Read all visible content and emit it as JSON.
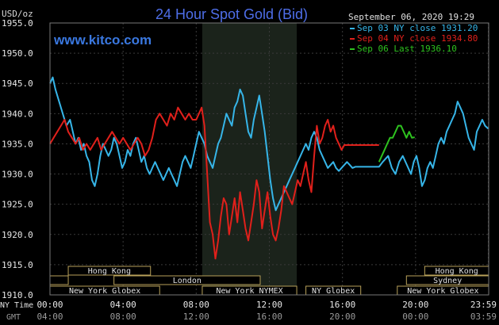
{
  "chart_data": {
    "type": "line",
    "title": "24 Hour Spot Gold (Bid)",
    "watermark": "www.kitco.com",
    "date": "September 06, 2020 19:29",
    "ylabel": "USD/oz",
    "ylim": [
      1910,
      1955
    ],
    "y_ticks": [
      "1955.0",
      "1950.0",
      "1945.0",
      "1940.0",
      "1935.0",
      "1930.0",
      "1925.0",
      "1920.0",
      "1915.0",
      "1910.0"
    ],
    "x_label_ny": "NY Time",
    "x_label_gmt": "GMT",
    "x_ticks_ny": [
      "00:00",
      "04:00",
      "08:00",
      "12:00",
      "16:00",
      "20:00",
      "23:59"
    ],
    "x_ticks_gmt": [
      "04:00",
      "08:00",
      "12:00",
      "16:00",
      "20:00",
      "00:00",
      "03:59"
    ],
    "x_hours": [
      0,
      4,
      8,
      12,
      16,
      20,
      23.983
    ],
    "nymex_session_hours": [
      8.33,
      13.5
    ],
    "grid": true,
    "legend": [
      {
        "label": "Sep 03 NY close 1931.20",
        "color": "#36b5e8"
      },
      {
        "label": "Sep 04 NY close 1934.80",
        "color": "#e0201b"
      },
      {
        "label": "Sep 06 Last 1936.10",
        "color": "#2ec21f"
      }
    ],
    "sessions": [
      {
        "name": "Hong Kong",
        "start": 1.0,
        "end": 5.5,
        "row": 0
      },
      {
        "name": "Hong Kong",
        "start": 20.5,
        "end": 24.0,
        "row": 0
      },
      {
        "name": "London",
        "start": 3.5,
        "end": 11.5,
        "row": 1
      },
      {
        "name": "",
        "start": 0.0,
        "end": 1.0,
        "row": 1
      },
      {
        "name": "Sydney",
        "start": 19.5,
        "end": 24.0,
        "row": 1
      },
      {
        "name": "New York Globex",
        "start": 0.0,
        "end": 6.0,
        "row": 2
      },
      {
        "name": "New York NYMEX",
        "start": 8.33,
        "end": 13.5,
        "row": 2
      },
      {
        "name": "NY Globex",
        "start": 14.0,
        "end": 17.0,
        "row": 2
      },
      {
        "name": "New York Globex",
        "start": 19.0,
        "end": 24.0,
        "row": 2
      }
    ],
    "series": [
      {
        "name": "Sep 03 NY close 1931.20",
        "color": "#36b5e8",
        "x": [
          0,
          0.15,
          0.3,
          0.5,
          0.7,
          0.9,
          1.1,
          1.25,
          1.4,
          1.55,
          1.7,
          1.85,
          2.0,
          2.15,
          2.3,
          2.45,
          2.6,
          2.75,
          2.9,
          3.05,
          3.2,
          3.35,
          3.5,
          3.65,
          3.8,
          3.95,
          4.1,
          4.25,
          4.4,
          4.55,
          4.7,
          4.85,
          5.0,
          5.15,
          5.3,
          5.45,
          5.6,
          5.75,
          5.9,
          6.05,
          6.2,
          6.35,
          6.5,
          6.65,
          6.8,
          6.95,
          7.1,
          7.25,
          7.4,
          7.55,
          7.7,
          7.85,
          8.0,
          8.15,
          8.3,
          8.45,
          8.6,
          8.75,
          8.9,
          9.05,
          9.2,
          9.35,
          9.5,
          9.65,
          9.8,
          9.95,
          10.1,
          10.25,
          10.4,
          10.55,
          10.7,
          10.85,
          11.0,
          11.15,
          11.3,
          11.45,
          11.6,
          11.75,
          11.9,
          12.05,
          12.2,
          12.35,
          12.5,
          12.65,
          12.8,
          12.95,
          13.1,
          13.25,
          13.4,
          13.55,
          13.7,
          13.85,
          14.0,
          14.15,
          14.3,
          14.45,
          14.6,
          14.75,
          14.9,
          15.05,
          15.2,
          15.35,
          15.5,
          15.65,
          15.8,
          15.95,
          16.1,
          16.25,
          16.4,
          16.55,
          16.7,
          16.85,
          17.0,
          17.5,
          18.0,
          18.2,
          18.5,
          18.7,
          18.9,
          19.1,
          19.3,
          19.45,
          19.6,
          19.75,
          19.9,
          20.05,
          20.2,
          20.35,
          20.5,
          20.65,
          20.8,
          20.95,
          21.1,
          21.25,
          21.4,
          21.55,
          21.7,
          21.85,
          22.0,
          22.15,
          22.3,
          22.45,
          22.6,
          22.75,
          22.9,
          23.05,
          23.2,
          23.35,
          23.5,
          23.65,
          23.8,
          23.98
        ],
        "y": [
          1945,
          1946,
          1944,
          1942,
          1940,
          1938,
          1939,
          1937,
          1935,
          1936,
          1934,
          1935,
          1933,
          1932,
          1929,
          1928,
          1930,
          1933,
          1935,
          1934,
          1933,
          1934,
          1936,
          1935,
          1933,
          1931,
          1932,
          1934,
          1933,
          1935,
          1936,
          1934,
          1932,
          1933,
          1931,
          1930,
          1931,
          1932,
          1931,
          1930,
          1929,
          1930,
          1931,
          1930,
          1929,
          1928,
          1930,
          1932,
          1933,
          1932,
          1931,
          1933,
          1935,
          1937,
          1936,
          1935,
          1933,
          1932,
          1931,
          1933,
          1935,
          1936,
          1938,
          1940,
          1939,
          1938,
          1941,
          1942,
          1944,
          1943,
          1940,
          1937,
          1936,
          1939,
          1941,
          1943,
          1940,
          1937,
          1933,
          1929,
          1926,
          1924,
          1925,
          1926,
          1927,
          1928,
          1929,
          1930,
          1931,
          1932,
          1933,
          1934,
          1935,
          1934,
          1936,
          1937,
          1936,
          1934,
          1933,
          1932,
          1931,
          1931.5,
          1932,
          1931,
          1930.5,
          1931,
          1931.5,
          1932,
          1931.5,
          1931,
          1931.2,
          1931.2,
          1931.2,
          1931.2,
          1931.2,
          1932,
          1933,
          1931,
          1930,
          1932,
          1933,
          1932,
          1931,
          1930,
          1932,
          1933,
          1931,
          1928,
          1929,
          1931,
          1932,
          1931,
          1933,
          1935,
          1936,
          1935,
          1937,
          1938,
          1939,
          1940,
          1942,
          1941,
          1940,
          1938,
          1936,
          1935,
          1934,
          1937,
          1938,
          1939,
          1938,
          1937.5
        ]
      },
      {
        "name": "Sep 04 NY close 1934.80",
        "color": "#e0201b",
        "x": [
          0,
          0.2,
          0.4,
          0.6,
          0.8,
          1.0,
          1.2,
          1.4,
          1.6,
          1.8,
          2.0,
          2.2,
          2.4,
          2.6,
          2.8,
          3.0,
          3.2,
          3.4,
          3.6,
          3.8,
          4.0,
          4.2,
          4.4,
          4.6,
          4.8,
          5.0,
          5.2,
          5.4,
          5.6,
          5.8,
          6.0,
          6.2,
          6.4,
          6.6,
          6.8,
          7.0,
          7.2,
          7.4,
          7.6,
          7.8,
          8.0,
          8.15,
          8.3,
          8.45,
          8.6,
          8.75,
          8.9,
          9.05,
          9.2,
          9.35,
          9.5,
          9.65,
          9.8,
          9.95,
          10.1,
          10.25,
          10.4,
          10.55,
          10.7,
          10.85,
          11.0,
          11.15,
          11.3,
          11.45,
          11.6,
          11.75,
          11.9,
          12.05,
          12.2,
          12.35,
          12.5,
          12.65,
          12.8,
          12.95,
          13.1,
          13.25,
          13.4,
          13.55,
          13.7,
          13.85,
          14.0,
          14.15,
          14.3,
          14.45,
          14.6,
          14.75,
          14.9,
          15.05,
          15.2,
          15.35,
          15.5,
          15.65,
          15.8,
          15.95,
          16.1,
          16.25,
          16.4,
          16.55,
          16.7,
          16.85,
          17.0,
          17.5,
          18.0
        ],
        "y": [
          1935,
          1936,
          1937,
          1938,
          1939,
          1937,
          1936,
          1935,
          1936,
          1934,
          1935,
          1934,
          1935,
          1936,
          1934,
          1935,
          1936,
          1937,
          1936,
          1935,
          1936,
          1935,
          1934,
          1935,
          1936,
          1935,
          1933,
          1934,
          1936,
          1939,
          1940,
          1939,
          1938,
          1940,
          1939,
          1941,
          1940,
          1939,
          1940,
          1939,
          1939,
          1940,
          1941,
          1938,
          1930,
          1922,
          1920,
          1916,
          1919,
          1923,
          1926,
          1925,
          1920,
          1923,
          1926,
          1922,
          1927,
          1924,
          1921,
          1919,
          1922,
          1925,
          1929,
          1927,
          1921,
          1924,
          1927,
          1923,
          1920,
          1919,
          1921,
          1924,
          1928,
          1927,
          1926,
          1925,
          1927,
          1929,
          1928,
          1930,
          1932,
          1929,
          1927,
          1933,
          1938,
          1935,
          1936,
          1938,
          1939,
          1937,
          1938,
          1936,
          1935,
          1934,
          1934.8,
          1934.8,
          1934.8,
          1934.8,
          1934.8,
          1934.8,
          1934.8,
          1934.8,
          1934.8
        ]
      },
      {
        "name": "Sep 06 Last 1936.10",
        "color": "#2ec21f",
        "x": [
          18.0,
          18.15,
          18.3,
          18.45,
          18.6,
          18.75,
          18.9,
          19.05,
          19.2,
          19.35,
          19.5,
          19.65,
          19.8,
          19.95
        ],
        "y": [
          1932,
          1933,
          1934,
          1935,
          1936,
          1936,
          1937,
          1938,
          1938,
          1937,
          1936,
          1937,
          1936,
          1936.1
        ]
      }
    ]
  }
}
